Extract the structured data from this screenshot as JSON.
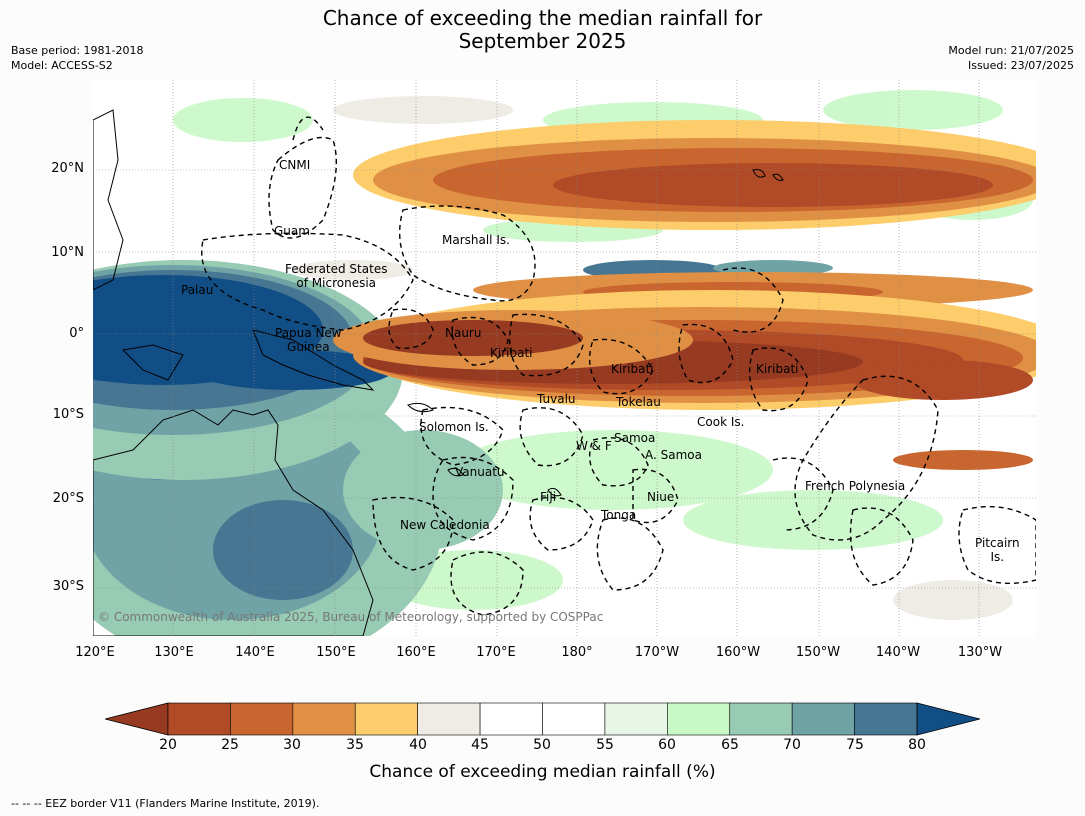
{
  "title_line1": "Chance of exceeding the median rainfall for",
  "title_line2": "September 2025",
  "base_period": "Base period: 1981-2018",
  "model": "Model: ACCESS-S2",
  "model_run": "Model run: 21/07/2025",
  "issued": "Issued: 23/07/2025",
  "lat_labels": [
    "20°N",
    "10°N",
    "0°",
    "10°S",
    "20°S",
    "30°S"
  ],
  "lon_labels": [
    "120°E",
    "130°E",
    "140°E",
    "150°E",
    "160°E",
    "170°E",
    "180°",
    "170°W",
    "160°W",
    "150°W",
    "140°W",
    "130°W"
  ],
  "places": {
    "cnmi": "CNMI",
    "guam": "Guam",
    "marshall": "Marshall Is.",
    "fsm_1": "Federated States",
    "fsm_2": "of Micronesia",
    "palau": "Palau",
    "png_1": "Papua New",
    "png_2": "Guinea",
    "nauru": "Nauru",
    "kiribati_w": "Kiribati",
    "kiribati_c": "Kiribati",
    "kiribati_e": "Kiribati",
    "tuvalu": "Tuvalu",
    "tokelau": "Tokelau",
    "cook": "Cook Is.",
    "solomon": "Solomon Is.",
    "samoa": "Samoa",
    "wf": "W & F",
    "asamoa": "A. Samoa",
    "vanuatu": "Vanuatu",
    "fiji": "Fiji",
    "niue": "Niue",
    "tonga": "Tonga",
    "new_caledonia": "New Caledonia",
    "french_polynesia": "French Polynesia",
    "pitcairn_1": "Pitcairn",
    "pitcairn_2": "Is."
  },
  "copyright": "© Commonwealth of Australia 2025, Bureau of Meteorology, supported by COSPPac",
  "colorbar": {
    "label": "Chance of exceeding median rainfall (%)",
    "ticks": [
      "20",
      "25",
      "30",
      "35",
      "40",
      "45",
      "50",
      "55",
      "60",
      "65",
      "70",
      "75",
      "80"
    ],
    "under_color": "#973a22",
    "over_color": "#124e86",
    "colors": [
      "#b04a27",
      "#c9652f",
      "#e09044",
      "#fccd6a",
      "#efece6",
      "#ffffff",
      "#ffffff",
      "#e8f6e8",
      "#c8f8c6",
      "#98cbb3",
      "#6fa3a6",
      "#467692"
    ]
  },
  "footnote": "--  --  -- EEZ border V11 (Flanders Marine Institute, 2019)."
}
